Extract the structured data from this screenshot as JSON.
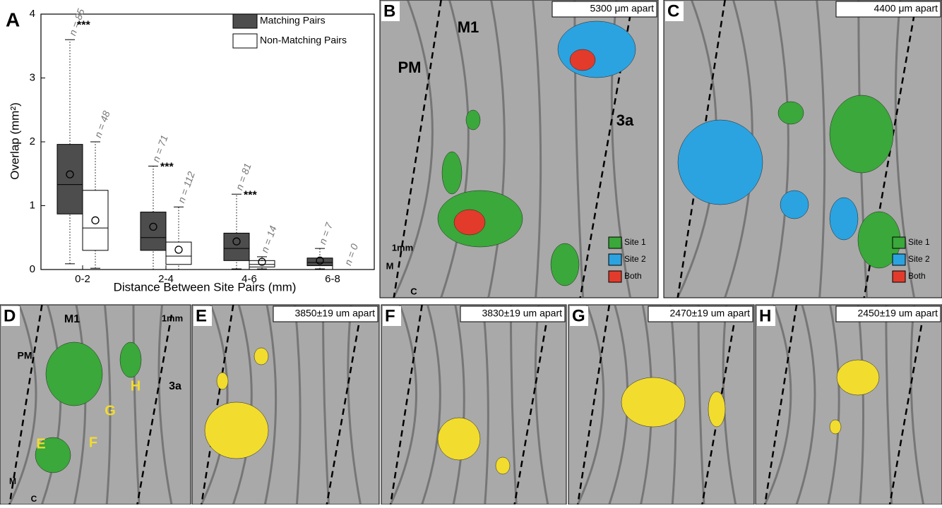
{
  "chart_data": {
    "type": "box",
    "panel": "A",
    "ylabel": "Overlap (mm²)",
    "xlabel": "Distance Between Site Pairs (mm)",
    "categories": [
      "0-2",
      "2-4",
      "4-6",
      "6-8"
    ],
    "ylim": [
      0,
      4
    ],
    "yticks": [
      0,
      1,
      2,
      3,
      4
    ],
    "legend": "top-right",
    "series": [
      {
        "name": "Matching Pairs",
        "color": "#4d4d4d",
        "min": [
          0.09,
          0.0,
          0.01,
          0.01
        ],
        "q1": [
          0.87,
          0.3,
          0.14,
          0.06
        ],
        "median": [
          1.33,
          0.5,
          0.33,
          0.11
        ],
        "q3": [
          1.96,
          0.9,
          0.57,
          0.18
        ],
        "max": [
          3.6,
          1.62,
          1.18,
          0.33
        ],
        "mean": [
          1.49,
          0.67,
          0.44,
          0.14
        ],
        "n": [
          85,
          71,
          81,
          7
        ],
        "n_labels": [
          "n = 85",
          "n = 71",
          "n = 81",
          "n = 7"
        ],
        "significance": [
          "***",
          "***",
          "***",
          null
        ]
      },
      {
        "name": "Non-Matching Pairs",
        "color": "#ffffff",
        "min": [
          0.02,
          0.0,
          0.01,
          null
        ],
        "q1": [
          0.3,
          0.08,
          0.04,
          null
        ],
        "median": [
          0.65,
          0.21,
          0.08,
          null
        ],
        "q3": [
          1.24,
          0.43,
          0.14,
          null
        ],
        "max": [
          2.0,
          0.98,
          0.2,
          null
        ],
        "mean": [
          0.77,
          0.31,
          0.12,
          null
        ],
        "n": [
          48,
          112,
          14,
          0
        ],
        "n_labels": [
          "n = 48",
          "n = 112",
          "n = 14",
          "n = 0"
        ]
      }
    ]
  },
  "panels": [
    {
      "letter": "B",
      "distance": "5300 μm apart",
      "labels": [
        "M1",
        "PM",
        "3a",
        "1mm",
        "M",
        "C"
      ],
      "legend": [
        {
          "name": "Site 1",
          "color": "#3aa83a"
        },
        {
          "name": "Site 2",
          "color": "#2ba3e0"
        },
        {
          "name": "Both",
          "color": "#e23b2b"
        }
      ]
    },
    {
      "letter": "C",
      "distance": "4400 μm apart",
      "labels": [],
      "legend": [
        {
          "name": "Site 1",
          "color": "#3aa83a"
        },
        {
          "name": "Site 2",
          "color": "#2ba3e0"
        },
        {
          "name": "Both",
          "color": "#e23b2b"
        }
      ]
    },
    {
      "letter": "D",
      "distance": null,
      "labels": [
        "M1",
        "PM",
        "3a",
        "1mm",
        "M",
        "C",
        "E",
        "F",
        "G",
        "H"
      ],
      "legend": []
    },
    {
      "letter": "E",
      "distance": "3850±19 um apart",
      "labels": [],
      "legend": []
    },
    {
      "letter": "F",
      "distance": "3830±19 um apart",
      "labels": [],
      "legend": []
    },
    {
      "letter": "G",
      "distance": "2470±19 um apart",
      "labels": [],
      "legend": []
    },
    {
      "letter": "H",
      "distance": "2450±19 um apart",
      "labels": [],
      "legend": []
    }
  ]
}
